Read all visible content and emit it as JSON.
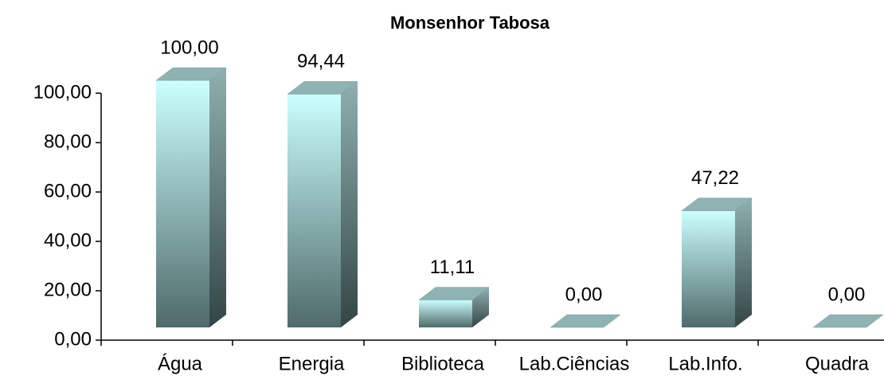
{
  "chart_data": {
    "type": "bar3d",
    "title": "Monsenhor Tabosa",
    "categories": [
      "Água",
      "Energia",
      "Biblioteca",
      "Lab.Ciências",
      "Lab.Info.",
      "Quadra"
    ],
    "values": [
      100,
      94.44,
      11.11,
      0,
      47.22,
      0
    ],
    "value_labels": [
      "100,00",
      "94,44",
      "11,11",
      "0,00",
      "47,22",
      "0,00"
    ],
    "ylim": [
      0,
      100
    ],
    "yticks": [
      {
        "value": 0,
        "label": "0,00"
      },
      {
        "value": 20,
        "label": "20,00"
      },
      {
        "value": 40,
        "label": "40,00"
      },
      {
        "value": 60,
        "label": "60,00"
      },
      {
        "value": 80,
        "label": "80,00"
      },
      {
        "value": 100,
        "label": "100,00"
      }
    ]
  }
}
